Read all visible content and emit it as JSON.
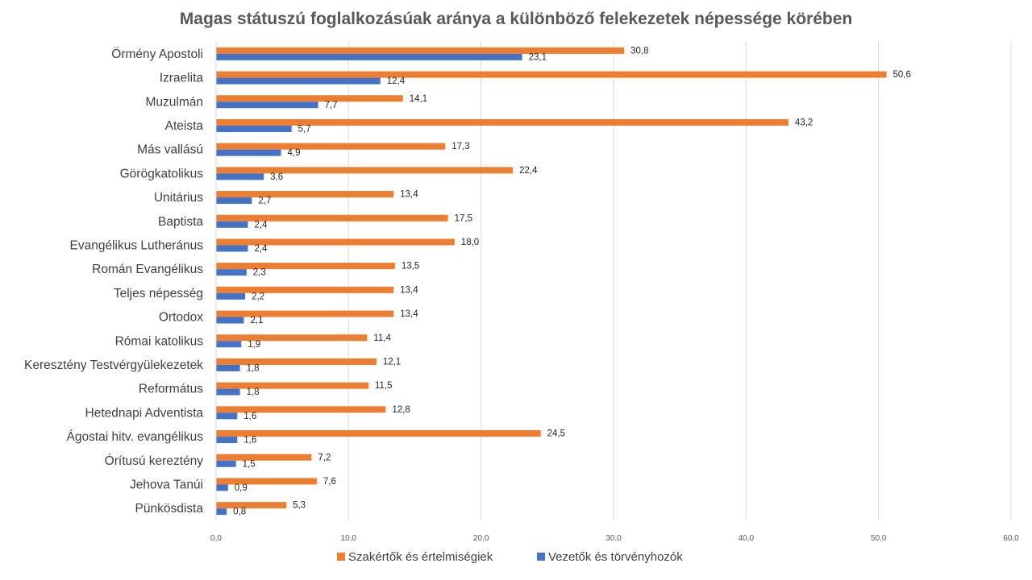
{
  "chart_data": {
    "type": "bar",
    "orientation": "horizontal",
    "title": "Magas státuszú foglalkozásúak aránya a különböző felekezetek népessége körében",
    "categories": [
      "Örmény Apostoli",
      "Izraelita",
      "Muzulmán",
      "Ateista",
      "Más vallású",
      "Görögkatolikus",
      "Unitárius",
      "Baptista",
      "Evangélikus Lutheránus",
      "Román Evangélikus",
      "Teljes népesség",
      "Ortodox",
      "Római katolikus",
      "Keresztény Testvérgyülekezetek",
      "Református",
      "Hetednapi Adventista",
      "Ágostai hitv.  evangélikus",
      "Órítusú kereztény",
      "Jehova Tanúi",
      "Pünkösdista"
    ],
    "series": [
      {
        "name": "Szakértők és értelmiségiek",
        "color": "#ED7D31",
        "values": [
          30.8,
          50.6,
          14.1,
          43.2,
          17.3,
          22.4,
          13.4,
          17.5,
          18.0,
          13.5,
          13.4,
          13.4,
          11.4,
          12.1,
          11.5,
          12.8,
          24.5,
          7.2,
          7.6,
          5.3
        ],
        "labels": [
          "30,8",
          "50,6",
          "14,1",
          "43,2",
          "17,3",
          "22,4",
          "13,4",
          "17,5",
          "18,0",
          "13,5",
          "13,4",
          "13,4",
          "11,4",
          "12,1",
          "11,5",
          "12,8",
          "24,5",
          "7,2",
          "7,6",
          "5,3"
        ]
      },
      {
        "name": "Vezetők és törvényhozók",
        "color": "#4472C4",
        "values": [
          23.1,
          12.4,
          7.7,
          5.7,
          4.9,
          3.6,
          2.7,
          2.4,
          2.4,
          2.3,
          2.2,
          2.1,
          1.9,
          1.8,
          1.8,
          1.6,
          1.6,
          1.5,
          0.9,
          0.8
        ],
        "labels": [
          "23,1",
          "12,4",
          "7,7",
          "5,7",
          "4,9",
          "3,6",
          "2,7",
          "2,4",
          "2,4",
          "2,3",
          "2,2",
          "2,1",
          "1,9",
          "1,8",
          "1,8",
          "1,6",
          "1,6",
          "1,5",
          "0,9",
          "0,8"
        ]
      }
    ],
    "xlim": [
      0,
      60
    ],
    "xticks": [
      0,
      10,
      20,
      30,
      40,
      50,
      60
    ],
    "xtick_labels": [
      "0,0",
      "10,0",
      "20,0",
      "30,0",
      "40,0",
      "50,0",
      "60,0"
    ],
    "grid": true,
    "legend_position": "bottom",
    "gridline_color": "#D9D9D9"
  }
}
